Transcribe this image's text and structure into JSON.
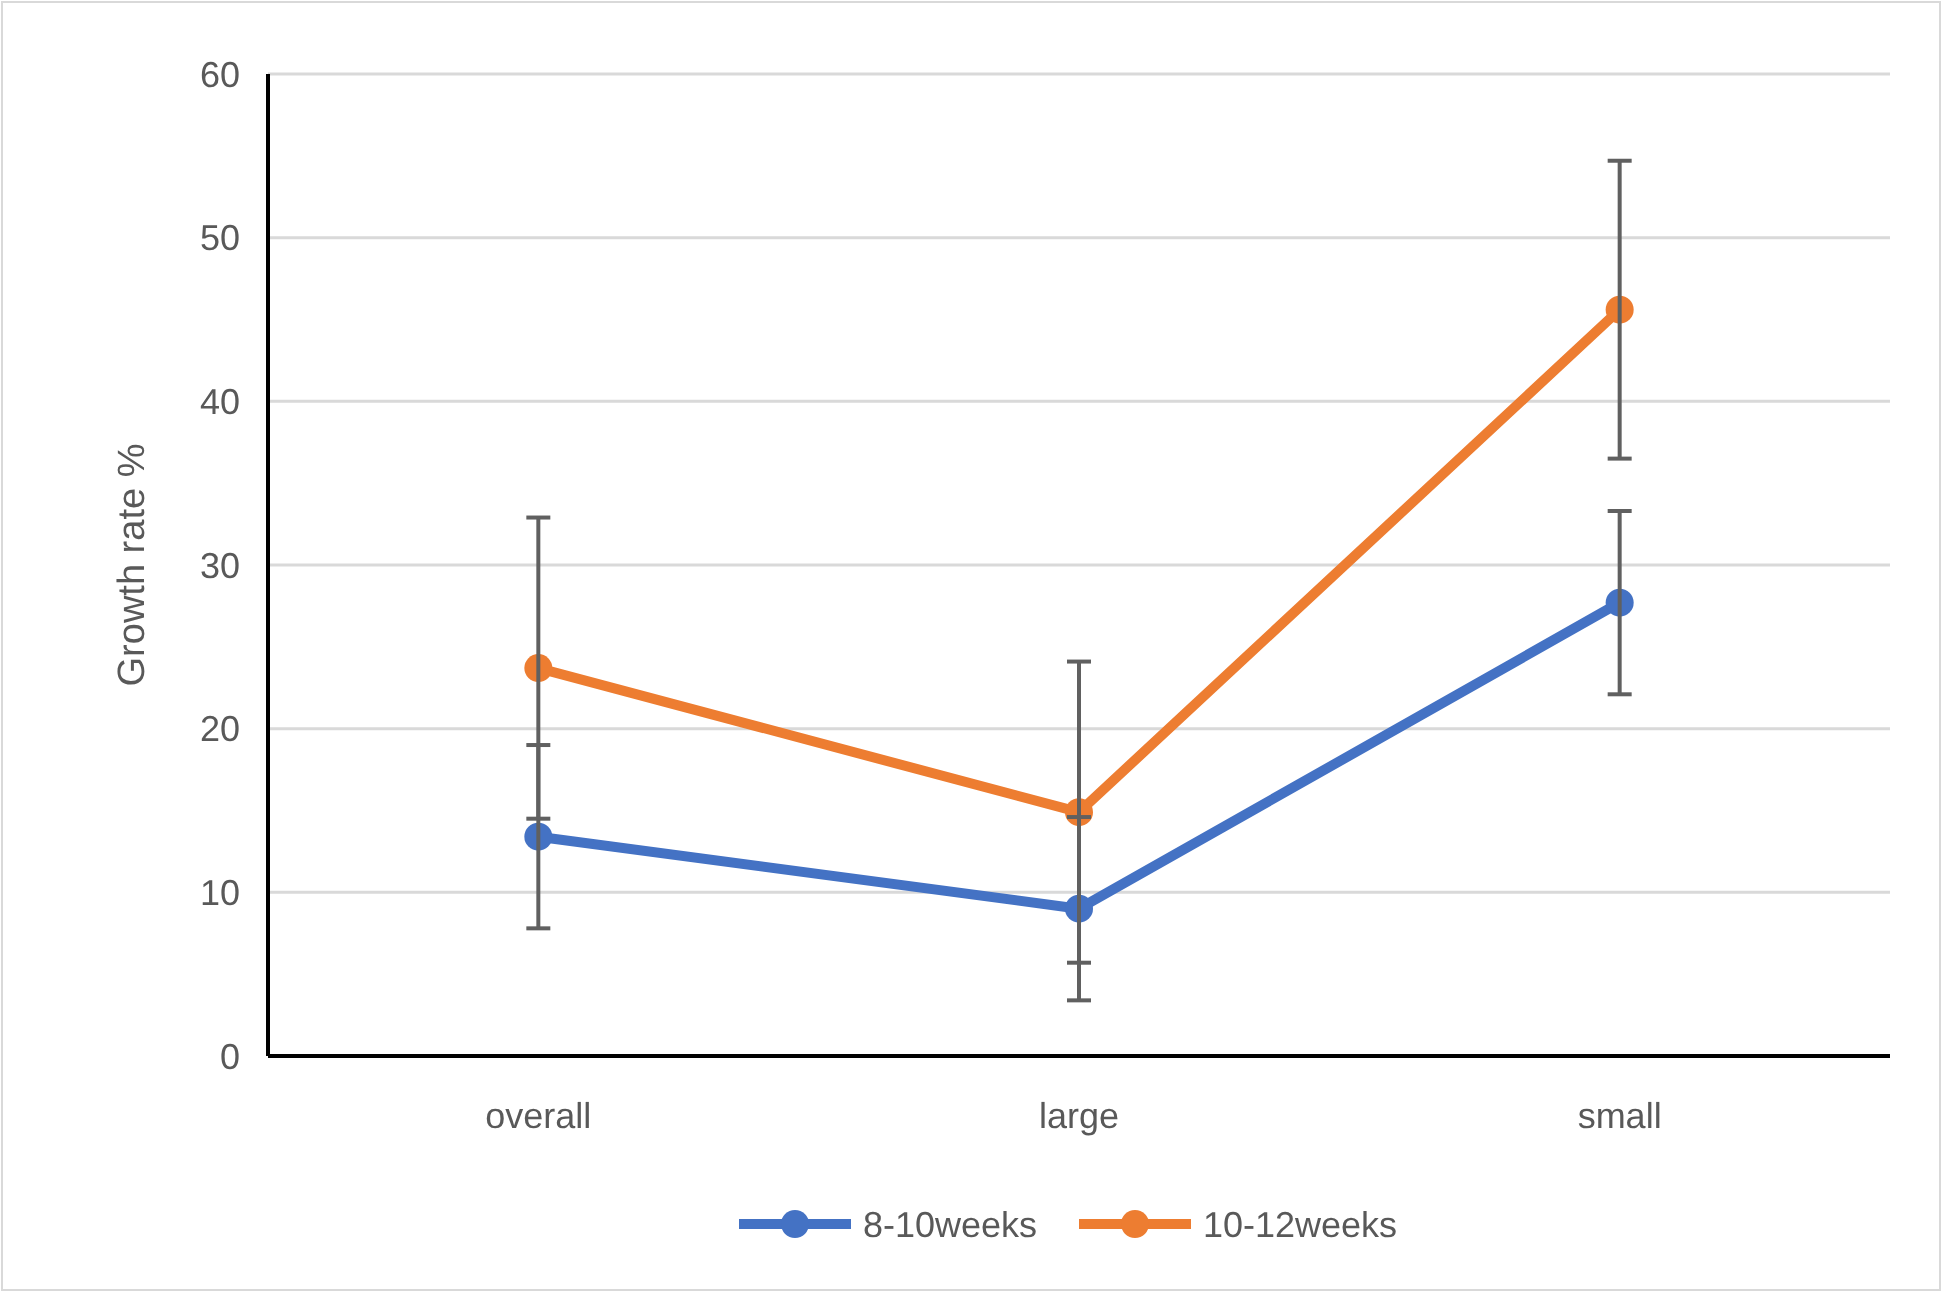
{
  "chart_data": {
    "type": "line",
    "ylabel": "Growth rate %",
    "categories": [
      "overall",
      "large",
      "small"
    ],
    "series": [
      {
        "name": "8-10weeks",
        "color": "#4472c4",
        "values": [
          13.4,
          9.0,
          27.7
        ],
        "errors": [
          5.6,
          5.6,
          5.6
        ]
      },
      {
        "name": "10-12weeks",
        "color": "#ed7d31",
        "values": [
          23.7,
          14.9,
          45.6
        ],
        "errors": [
          9.2,
          9.2,
          9.1
        ]
      }
    ],
    "ylim": [
      0,
      60
    ],
    "yticks": [
      0,
      10,
      20,
      30,
      40,
      50,
      60
    ],
    "grid": "y",
    "legend": "bottom",
    "marker": "circle",
    "line_style": "solid"
  }
}
